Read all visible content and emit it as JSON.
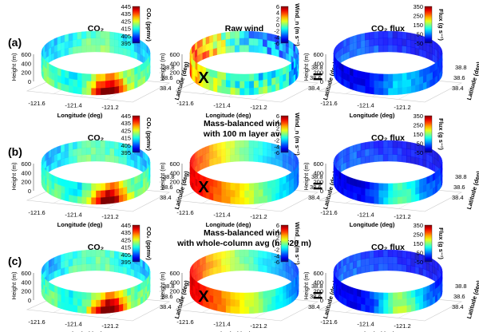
{
  "rows": [
    {
      "letter": "(a)",
      "panels": [
        {
          "title": "CO₂",
          "cbar_label": "CO₂ (ppmv)",
          "ticks": [
            "445",
            "435",
            "425",
            "415",
            "405",
            "395"
          ],
          "field": "co2",
          "intensity": 1.0
        },
        {
          "title": "Raw wind",
          "cbar_label": "Wind_n (m s⁻¹)",
          "ticks": [
            "6",
            "4",
            "2",
            "0",
            "-2",
            "-4",
            "-6"
          ],
          "field": "rawwind",
          "intensity": 1.0
        },
        {
          "title": "CO₂ flux",
          "cbar_label": "Flux (g s⁻¹)",
          "ticks": [
            "350",
            "250",
            "150",
            "50",
            "-50"
          ],
          "field": "flux",
          "intensity": 0.35
        }
      ]
    },
    {
      "letter": "(b)",
      "panels": [
        {
          "title": "CO₂",
          "cbar_label": "CO₂ (ppmv)",
          "ticks": [
            "445",
            "435",
            "425",
            "415",
            "405",
            "395"
          ],
          "field": "co2",
          "intensity": 1.0
        },
        {
          "title": "Mass-balanced wind",
          "title2": "with 100 m layer avg",
          "cbar_label": "Wind_n (m s⁻¹)",
          "ticks": [
            "6",
            "4",
            "2",
            "0",
            "-2",
            "-4",
            "-6"
          ],
          "field": "mbwind",
          "intensity": 1.0
        },
        {
          "title": "CO₂ flux",
          "cbar_label": "Flux (g s⁻¹)",
          "ticks": [
            "350",
            "250",
            "150",
            "50",
            "-50"
          ],
          "field": "flux",
          "intensity": 0.6
        }
      ]
    },
    {
      "letter": "(c)",
      "panels": [
        {
          "title": "CO₂",
          "cbar_label": "CO₂ (ppmv)",
          "ticks": [
            "445",
            "435",
            "425",
            "415",
            "405",
            "395"
          ],
          "field": "co2",
          "intensity": 1.0
        },
        {
          "title": "Mass-balanced wind",
          "title2": "with whole-column avg (h=520 m)",
          "cbar_label": "Wind_n (m s⁻¹)",
          "ticks": [
            "6",
            "4",
            "2",
            "0",
            "-2",
            "-4",
            "-6"
          ],
          "field": "mbwind",
          "intensity": 0.9
        },
        {
          "title": "CO₂ flux",
          "cbar_label": "Flux (g s⁻¹)",
          "ticks": [
            "350",
            "250",
            "150",
            "50",
            "-50"
          ],
          "field": "flux",
          "intensity": 0.8
        }
      ]
    }
  ],
  "operators": {
    "times": "X",
    "equals": "="
  },
  "axes": {
    "height_label": "Height (m)",
    "height_ticks": [
      "600",
      "400",
      "200",
      "0"
    ],
    "lon_label": "Longitude (deg)",
    "lon_ticks": [
      "-121.6",
      "-121.4",
      "-121.2"
    ],
    "lat_label": "Latitude (deg)",
    "lat_ticks": [
      "38.8",
      "38.6",
      "38.4"
    ]
  }
}
